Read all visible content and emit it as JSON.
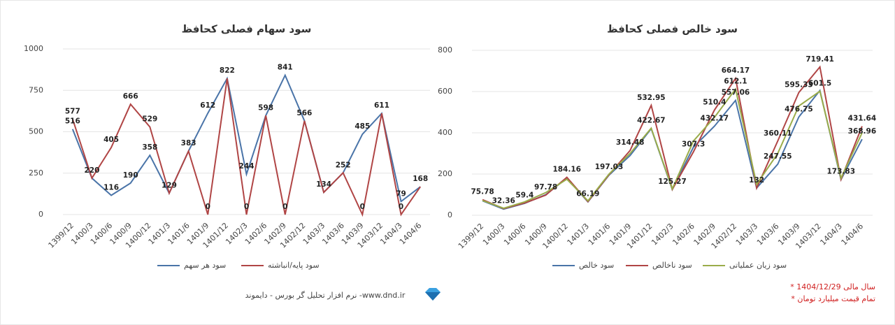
{
  "chart_data": [
    {
      "type": "line",
      "title": "سود سهام فصلی کحافظ",
      "categories": [
        "1399/12",
        "1400/3",
        "1400/6",
        "1400/9",
        "1400/12",
        "1401/3",
        "1401/6",
        "1401/9",
        "1401/12",
        "1402/3",
        "1402/6",
        "1402/9",
        "1402/12",
        "1403/3",
        "1403/6",
        "1403/9",
        "1403/12",
        "1404/3",
        "1404/6"
      ],
      "series": [
        {
          "name": "سود هر سهم",
          "color": "#4a74a8",
          "values": [
            516,
            220,
            116,
            190,
            358,
            129,
            383,
            612,
            822,
            244,
            598,
            841,
            566,
            134,
            252,
            485,
            611,
            79,
            168
          ],
          "value_labels": [
            "516",
            "220",
            "116",
            "190",
            "358",
            "129",
            "383",
            "612",
            "822",
            "244",
            "598",
            "841",
            "566",
            "134",
            "252",
            "485",
            "611",
            "79",
            "168"
          ]
        },
        {
          "name": "سود پایه/انباشته",
          "color": "#b04545",
          "values": [
            577,
            220,
            405,
            666,
            529,
            129,
            383,
            0,
            822,
            0,
            598,
            0,
            566,
            134,
            252,
            0,
            611,
            0,
            168
          ],
          "value_labels": [
            "577",
            null,
            "405",
            "666",
            "529",
            null,
            null,
            "0",
            null,
            "0",
            null,
            "0",
            null,
            null,
            null,
            "0",
            null,
            "0",
            null
          ]
        }
      ],
      "ylim": [
        0,
        1000
      ],
      "yticks": [
        0,
        250,
        500,
        750,
        1000
      ],
      "grid": true
    },
    {
      "type": "line",
      "title": "سود خالص فصلی کحافظ",
      "categories": [
        "1399/12",
        "1400/3",
        "1400/6",
        "1400/9",
        "1400/12",
        "1401/3",
        "1401/6",
        "1401/9",
        "1401/12",
        "1402/3",
        "1402/6",
        "1402/9",
        "1402/12",
        "1403/3",
        "1403/6",
        "1403/9",
        "1403/12",
        "1404/3",
        "1404/6"
      ],
      "series": [
        {
          "name": "سود خالص",
          "color": "#4a74a8",
          "values": [
            70,
            30,
            58,
            100,
            180,
            65,
            195,
            290,
            420,
            125,
            330,
            432.17,
            557.06,
            132,
            247.55,
            476.75,
            605,
            173,
            368.96
          ],
          "value_labels": [
            null,
            null,
            null,
            null,
            null,
            null,
            null,
            null,
            null,
            null,
            null,
            "432.17",
            "557.06",
            null,
            "247.55",
            "476.75",
            null,
            null,
            "368.96"
          ]
        },
        {
          "name": "سود ناخالص",
          "color": "#b04545",
          "values": [
            75.78,
            32.36,
            59.4,
            97.78,
            184.16,
            66.19,
            197.03,
            314.48,
            532.95,
            125.27,
            307.3,
            510.4,
            664.17,
            132,
            360.11,
            595.33,
            719.41,
            173.83,
            431.64
          ],
          "value_labels": [
            "75.78",
            "32.36",
            "59.4",
            "97.78",
            "184.16",
            "66.19",
            "197.03",
            "314.48",
            "532.95",
            "125.27",
            "307.3",
            "510.4",
            "664.17",
            "132",
            "360.11",
            "595.33",
            "719.41",
            "173.83",
            "431.64"
          ]
        },
        {
          "name": "سود زیان عملیاتی",
          "color": "#9aac4a",
          "values": [
            72,
            34,
            65,
            110,
            175,
            70,
            200,
            300,
            422.67,
            128,
            360,
            475,
            612.1,
            150,
            300,
            530,
            601.5,
            180,
            400
          ],
          "value_labels": [
            null,
            null,
            null,
            null,
            null,
            null,
            null,
            null,
            "422.67",
            null,
            null,
            null,
            "612.1",
            null,
            null,
            null,
            "601.5",
            null,
            null
          ]
        }
      ],
      "ylim": [
        0,
        800
      ],
      "yticks": [
        0,
        200,
        400,
        600,
        800
      ],
      "grid": true
    }
  ],
  "footer": {
    "source": "نرم افزار تحلیل گر بورس - دایموند -www.dnd.ir",
    "notes": [
      "* سال مالی 1404/12/29",
      "* تمام قیمت میلیارد تومان"
    ]
  }
}
